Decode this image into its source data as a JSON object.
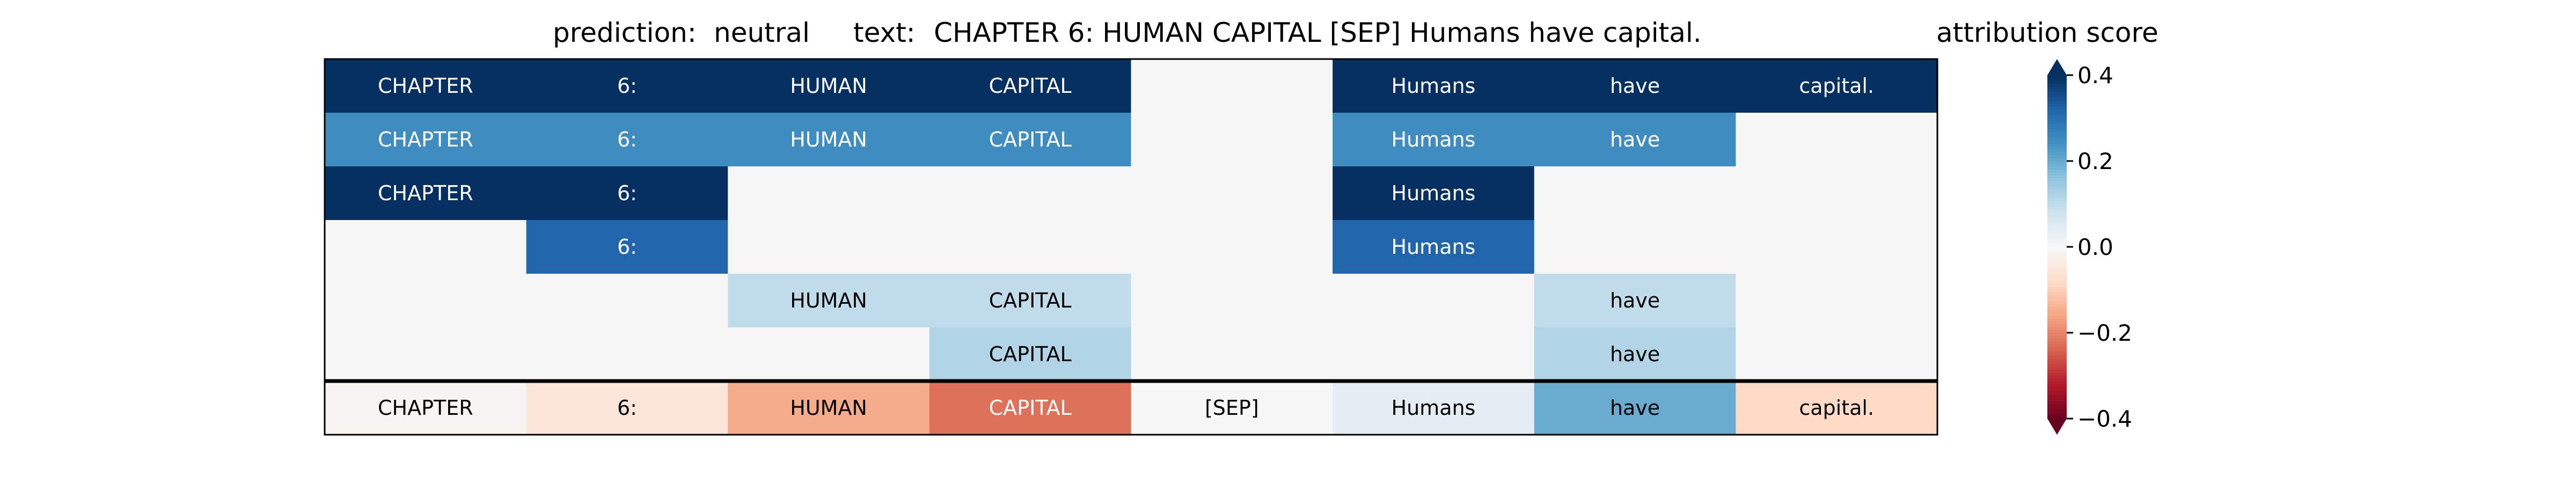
{
  "chart_data": {
    "type": "heatmap",
    "title": {
      "prediction_label": "prediction:",
      "prediction_value": "neutral",
      "text_label": "text:",
      "text_value": "CHAPTER 6: HUMAN CAPITAL [SEP] Humans have capital."
    },
    "columns": [
      "CHAPTER",
      "6:",
      "HUMAN",
      "CAPITAL",
      "[SEP]",
      "Humans",
      "have",
      "capital."
    ],
    "rows": [
      [
        0.4,
        0.4,
        0.4,
        0.4,
        null,
        0.4,
        0.4,
        0.4
      ],
      [
        0.25,
        0.25,
        0.25,
        0.25,
        null,
        0.25,
        0.25,
        null
      ],
      [
        0.4,
        0.4,
        null,
        null,
        null,
        0.4,
        null,
        null
      ],
      [
        null,
        0.32,
        null,
        null,
        null,
        0.32,
        null,
        null
      ],
      [
        null,
        null,
        0.1,
        0.1,
        null,
        null,
        0.1,
        null
      ],
      [
        null,
        null,
        null,
        0.12,
        null,
        null,
        0.12,
        null
      ]
    ],
    "attribution_row": [
      -0.01,
      -0.05,
      -0.15,
      -0.22,
      0.0,
      0.04,
      0.2,
      -0.08
    ],
    "colorbar": {
      "label": "attribution score",
      "min": -0.4,
      "max": 0.4,
      "ticks": [
        0.4,
        0.2,
        0.0,
        -0.2,
        -0.4
      ],
      "tick_labels": [
        "0.4",
        "0.2",
        "0.0",
        "−0.2",
        "−0.4"
      ],
      "colormap": "RdBu",
      "extend": "both"
    }
  }
}
